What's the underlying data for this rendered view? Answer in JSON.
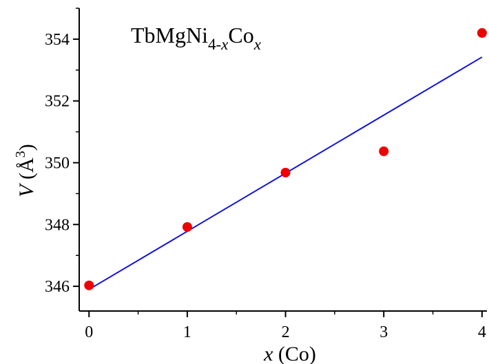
{
  "chart_data": {
    "type": "scatter",
    "annotation": {
      "base": "TbMgNi",
      "sub1": "4-",
      "sub1_italic": "x",
      "mid": "Co",
      "sub2_italic": "x"
    },
    "xlabel": {
      "italic": "x",
      "rest": " (Co)"
    },
    "ylabel": {
      "italic": "V",
      "rest": " (Å",
      "sup": "3",
      "close": ")"
    },
    "xlim": [
      -0.1,
      4.05
    ],
    "ylim": [
      345.2,
      355.0
    ],
    "x_ticks": [
      0,
      1,
      2,
      3,
      4
    ],
    "y_ticks": [
      346,
      348,
      350,
      352,
      354
    ],
    "series": [
      {
        "marker": "circle",
        "color": "#ee0000",
        "x": [
          0,
          1,
          2,
          3,
          4
        ],
        "y": [
          346.03,
          347.92,
          349.68,
          350.37,
          354.2
        ]
      }
    ],
    "fit_line": {
      "color": "#1010dd",
      "x": [
        0,
        4
      ],
      "y": [
        345.9,
        353.42
      ]
    },
    "grid": false,
    "legend": "none"
  }
}
